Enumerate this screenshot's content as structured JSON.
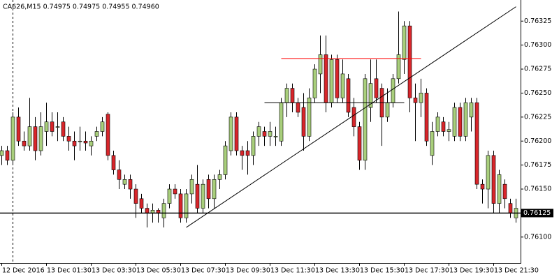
{
  "chart_data": {
    "type": "candlestick",
    "title": "CA626,M15  0.74975 0.74975 0.74955 0.74960",
    "categories": [
      "12 Dec 2016",
      null,
      null,
      null,
      null,
      null,
      null,
      null,
      "13 Dec 01:30",
      null,
      null,
      null,
      null,
      null,
      null,
      null,
      "13 Dec 03:30",
      null,
      null,
      null,
      null,
      null,
      null,
      null,
      "13 Dec 05:30",
      null,
      null,
      null,
      null,
      null,
      null,
      null,
      "13 Dec 07:30",
      null,
      null,
      null,
      null,
      null,
      null,
      null,
      "13 Dec 09:30",
      null,
      null,
      null,
      null,
      null,
      null,
      null,
      "13 Dec 11:30",
      null,
      null,
      null,
      null,
      null,
      null,
      null,
      "13 Dec 13:30",
      null,
      null,
      null,
      null,
      null,
      null,
      null,
      "13 Dec 15:30",
      null,
      null,
      null,
      null,
      null,
      null,
      null,
      "13 Dec 17:30",
      null,
      null,
      null,
      null,
      null,
      null,
      null,
      "13 Dec 19:30",
      null,
      null,
      null,
      null,
      null,
      null,
      null,
      "13 Dec 21:30",
      null,
      null,
      null,
      null
    ],
    "open": [
      0.76185,
      0.7619,
      0.7618,
      0.76225,
      0.762,
      0.76195,
      0.76215,
      0.7619,
      0.7621,
      0.7622,
      0.76215,
      0.7622,
      0.76205,
      0.762,
      0.762,
      0.762,
      0.76195,
      0.76205,
      0.7621,
      0.76228,
      0.76185,
      0.7617,
      0.76155,
      0.7616,
      0.7615,
      0.7614,
      0.7613,
      0.76125,
      0.76128,
      0.7612,
      0.76135,
      0.7615,
      0.76145,
      0.7612,
      0.76145,
      0.76155,
      0.7613,
      0.7616,
      0.7614,
      0.7616,
      0.76165,
      0.7619,
      0.76225,
      0.7619,
      0.7619,
      0.76185,
      0.76205,
      0.7621,
      0.76205,
      0.76205,
      0.762,
      0.7624,
      0.76255,
      0.7624,
      0.76235,
      0.76205,
      0.76245,
      0.7627,
      0.7629,
      0.7624,
      0.76285,
      0.76245,
      0.76265,
      0.76235,
      0.76215,
      0.7618,
      0.76235,
      0.76265,
      0.76255,
      0.76225,
      0.7624,
      0.76265,
      0.76285,
      0.7632,
      0.76245,
      0.7624,
      0.7625,
      0.76185,
      0.7621,
      0.7622,
      0.7621,
      0.76205,
      0.76235,
      0.76205,
      0.76225,
      0.7624,
      0.76155,
      0.7615,
      0.76185,
      0.76135,
      0.76155,
      0.76135,
      0.7612
    ],
    "high": [
      0.76195,
      0.76195,
      0.7623,
      0.76235,
      0.7621,
      0.76245,
      0.76225,
      0.7623,
      0.7624,
      0.7623,
      0.7623,
      0.76225,
      0.76215,
      0.7621,
      0.76215,
      0.7621,
      0.76205,
      0.76215,
      0.76225,
      0.7623,
      0.7619,
      0.7618,
      0.76165,
      0.76165,
      0.76155,
      0.76145,
      0.76135,
      0.76135,
      0.7613,
      0.7614,
      0.76155,
      0.76155,
      0.7615,
      0.7615,
      0.76165,
      0.76175,
      0.7616,
      0.76165,
      0.76165,
      0.7617,
      0.762,
      0.7623,
      0.7623,
      0.76195,
      0.762,
      0.7621,
      0.7622,
      0.76215,
      0.7622,
      0.76215,
      0.76245,
      0.7626,
      0.7626,
      0.76245,
      0.7625,
      0.76255,
      0.7628,
      0.7631,
      0.7631,
      0.7629,
      0.7629,
      0.76285,
      0.7627,
      0.76245,
      0.7622,
      0.7627,
      0.76285,
      0.76285,
      0.7626,
      0.76255,
      0.7627,
      0.76335,
      0.76325,
      0.76325,
      0.7626,
      0.76265,
      0.76255,
      0.7622,
      0.7623,
      0.76225,
      0.7622,
      0.7624,
      0.7624,
      0.76245,
      0.76245,
      0.76245,
      0.7616,
      0.7619,
      0.7619,
      0.7617,
      0.7616,
      0.7614,
      0.7614
    ],
    "low": [
      0.76175,
      0.76175,
      0.76175,
      0.76195,
      0.7619,
      0.7619,
      0.7618,
      0.76185,
      0.76195,
      0.76205,
      0.762,
      0.762,
      0.7619,
      0.7618,
      0.7619,
      0.7619,
      0.76185,
      0.762,
      0.76205,
      0.7618,
      0.76165,
      0.7615,
      0.7615,
      0.7614,
      0.7612,
      0.76125,
      0.7611,
      0.76115,
      0.76115,
      0.7611,
      0.7613,
      0.7614,
      0.76115,
      0.76115,
      0.76135,
      0.76125,
      0.76125,
      0.7613,
      0.7613,
      0.7615,
      0.7616,
      0.76185,
      0.76185,
      0.7617,
      0.76165,
      0.76175,
      0.76195,
      0.76195,
      0.76195,
      0.76195,
      0.76195,
      0.76225,
      0.7623,
      0.76225,
      0.7619,
      0.762,
      0.7624,
      0.7625,
      0.7623,
      0.76235,
      0.7624,
      0.7624,
      0.76225,
      0.76205,
      0.7617,
      0.7617,
      0.7622,
      0.7624,
      0.76195,
      0.7622,
      0.76235,
      0.7626,
      0.7627,
      0.7623,
      0.762,
      0.76225,
      0.76195,
      0.76175,
      0.76205,
      0.76205,
      0.762,
      0.762,
      0.762,
      0.762,
      0.7621,
      0.7615,
      0.76135,
      0.7613,
      0.76125,
      0.76125,
      0.7613,
      0.7612,
      0.76115
    ],
    "close": [
      0.7619,
      0.7618,
      0.76225,
      0.762,
      0.76195,
      0.76215,
      0.7619,
      0.76215,
      0.7622,
      0.7621,
      0.76215,
      0.76205,
      0.762,
      0.76195,
      0.762,
      0.76198,
      0.762,
      0.7621,
      0.7622,
      0.76185,
      0.7617,
      0.7616,
      0.7616,
      0.7615,
      0.76135,
      0.7613,
      0.76125,
      0.76128,
      0.76125,
      0.76135,
      0.7615,
      0.76145,
      0.7612,
      0.76145,
      0.7616,
      0.7613,
      0.76155,
      0.7614,
      0.7616,
      0.76165,
      0.76195,
      0.76225,
      0.7619,
      0.76185,
      0.76185,
      0.76205,
      0.76215,
      0.76205,
      0.7621,
      0.76205,
      0.7624,
      0.76255,
      0.7624,
      0.7623,
      0.76205,
      0.76245,
      0.76275,
      0.7629,
      0.7624,
      0.76285,
      0.76245,
      0.7627,
      0.7623,
      0.76215,
      0.7618,
      0.76265,
      0.7626,
      0.76245,
      0.76225,
      0.7624,
      0.76265,
      0.7629,
      0.7632,
      0.76245,
      0.7624,
      0.7625,
      0.762,
      0.7621,
      0.76225,
      0.7621,
      0.76212,
      0.76235,
      0.76205,
      0.7624,
      0.7624,
      0.76155,
      0.7615,
      0.76185,
      0.76135,
      0.76165,
      0.7614,
      0.76125,
      0.7613
    ],
    "up_color": "#a9cf7c",
    "down_color": "#d8262b",
    "ylim": [
      0.76073,
      0.76347
    ],
    "yticks": [
      {
        "value": 0.761,
        "label": "0.76100"
      },
      {
        "value": 0.76125,
        "label": "0.76125"
      },
      {
        "value": 0.7615,
        "label": "0.76150"
      },
      {
        "value": 0.76175,
        "label": "0.76175"
      },
      {
        "value": 0.762,
        "label": "0.76200"
      },
      {
        "value": 0.76225,
        "label": "0.76225"
      },
      {
        "value": 0.7625,
        "label": "0.76250"
      },
      {
        "value": 0.76275,
        "label": "0.76275"
      },
      {
        "value": 0.763,
        "label": "0.76300"
      },
      {
        "value": 0.76325,
        "label": "0.76325"
      }
    ],
    "hline": 0.76125,
    "lines": [
      {
        "x": [
          33,
          92
        ],
        "values": [
          0.7611,
          0.7634
        ],
        "color": "#000000"
      },
      {
        "x": [
          50,
          75
        ],
        "values": [
          0.76286,
          0.76286
        ],
        "color": "#ff0000"
      },
      {
        "x": [
          47,
          72
        ],
        "values": [
          0.7624,
          0.7624
        ],
        "color": "#000000"
      }
    ]
  }
}
